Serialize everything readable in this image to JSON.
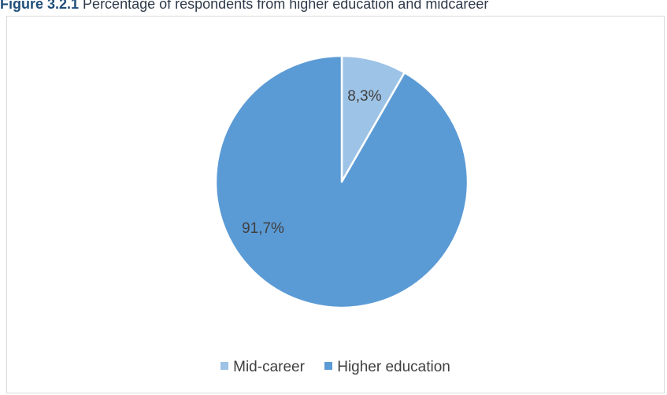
{
  "caption": {
    "label": "Figure 3.2.1",
    "text": " Percentage of respondents from higher education and midcareer"
  },
  "chart_data": {
    "type": "pie",
    "slices": [
      {
        "label": "Mid-career",
        "value": 8.3,
        "display": "8,3%",
        "color": "#9dc3e6"
      },
      {
        "label": "Higher education",
        "value": 91.7,
        "display": "91,7%",
        "color": "#5b9bd5"
      }
    ],
    "legend_position": "bottom",
    "slice_border_color": "#ffffff"
  }
}
